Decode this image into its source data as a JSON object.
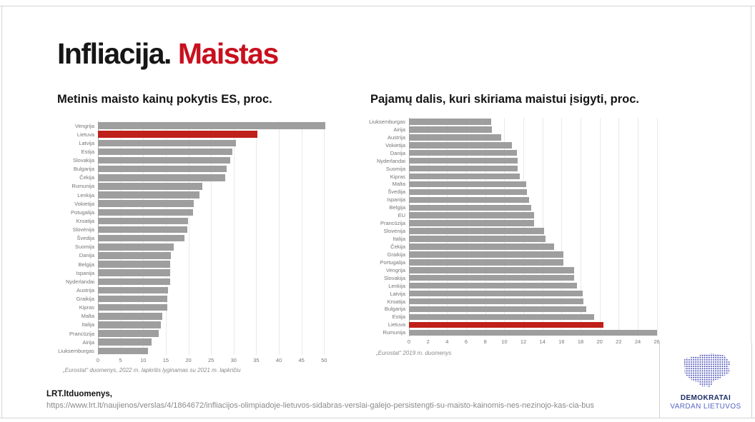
{
  "title": {
    "black": "Infliacija.",
    "red": "Maistas"
  },
  "colors": {
    "accent_red": "#c0201a",
    "title_red": "#c8101e",
    "bar_gray": "#9e9e9e"
  },
  "footer": {
    "source": "LRT.ltduomenys,",
    "url": "https://www.lrt.lt/naujienos/verslas/4/1864672/infliacijos-olimpiadoje-lietuvos-sidabras-verslai-galejo-persistengti-su-maisto-kainomis-nes-nezinojo-kas-cia-bus"
  },
  "logo": {
    "line1": "DEMOKRATAI",
    "line2": "VARDAN LIETUVOS",
    "map": "lithuania-dotted-map",
    "map_color": "#3a3fae"
  },
  "chart_data": [
    {
      "type": "bar",
      "orientation": "horizontal",
      "title": "Metinis maisto kainų pokytis ES, proc.",
      "footnote": "„Eurostat“ duomenys, 2022 m. lapkritis lyginamas su 2021 m. lapkričiu",
      "categories": [
        "Vengrija",
        "Lietuva",
        "Latvija",
        "Estija",
        "Slovakija",
        "Bulgarija",
        "Čekija",
        "Rumunija",
        "Lenkija",
        "Vokietija",
        "Potugalija",
        "Kroatija",
        "Slovėnija",
        "Švedija",
        "Suomija",
        "Danija",
        "Belgija",
        "Ispanija",
        "Nyderlandai",
        "Austrija",
        "Graikija",
        "Kipras",
        "Malta",
        "Italija",
        "Prancūzija",
        "Airija",
        "Liuksemburgas"
      ],
      "values": [
        50.2,
        35.3,
        30.5,
        29.7,
        29.2,
        28.4,
        28.1,
        23.1,
        22.4,
        21.2,
        21.0,
        19.9,
        19.8,
        19.2,
        16.7,
        16.1,
        16.0,
        15.9,
        16.0,
        15.5,
        15.4,
        15.3,
        14.2,
        13.9,
        13.4,
        11.8,
        11.1
      ],
      "highlight_category": "Lietuva",
      "xticks": [
        0,
        5,
        10,
        15,
        20,
        25,
        30,
        35,
        40,
        45,
        50
      ],
      "xlim": [
        0,
        50.9
      ],
      "grid": true,
      "legend": "none"
    },
    {
      "type": "bar",
      "orientation": "horizontal",
      "title": "Pajamų dalis, kuri skiriama maistui įsigyti, proc.",
      "footnote": "„Eurostat“ 2019 m. duomenys",
      "categories": [
        "Liuksemburgas",
        "Airija",
        "Austrija",
        "Vokietija",
        "Danija",
        "Nyderlandai",
        "Suomija",
        "Kipras",
        "Malta",
        "Švedija",
        "Ispanija",
        "Belgija",
        "EU",
        "Prancūzija",
        "Slovėnija",
        "Italija",
        "Čekija",
        "Graikija",
        "Portugalija",
        "Vengrija",
        "Slovakija",
        "Lenkija",
        "Latvija",
        "Kroatija",
        "Bulgarija",
        "Estija",
        "Lietuva",
        "Rumunija"
      ],
      "values": [
        8.6,
        8.7,
        9.7,
        10.8,
        11.3,
        11.4,
        11.4,
        11.6,
        12.3,
        12.4,
        12.6,
        12.8,
        13.1,
        13.1,
        14.2,
        14.3,
        15.2,
        16.2,
        16.2,
        17.3,
        17.3,
        17.6,
        18.2,
        18.3,
        18.6,
        19.4,
        20.4,
        26.0
      ],
      "highlight_category": "Lietuva",
      "xticks": [
        0,
        2,
        4,
        6,
        8,
        10,
        12,
        14,
        16,
        18,
        20,
        22,
        24,
        26
      ],
      "xlim": [
        0,
        26.7
      ],
      "grid": true,
      "legend": "none"
    }
  ]
}
